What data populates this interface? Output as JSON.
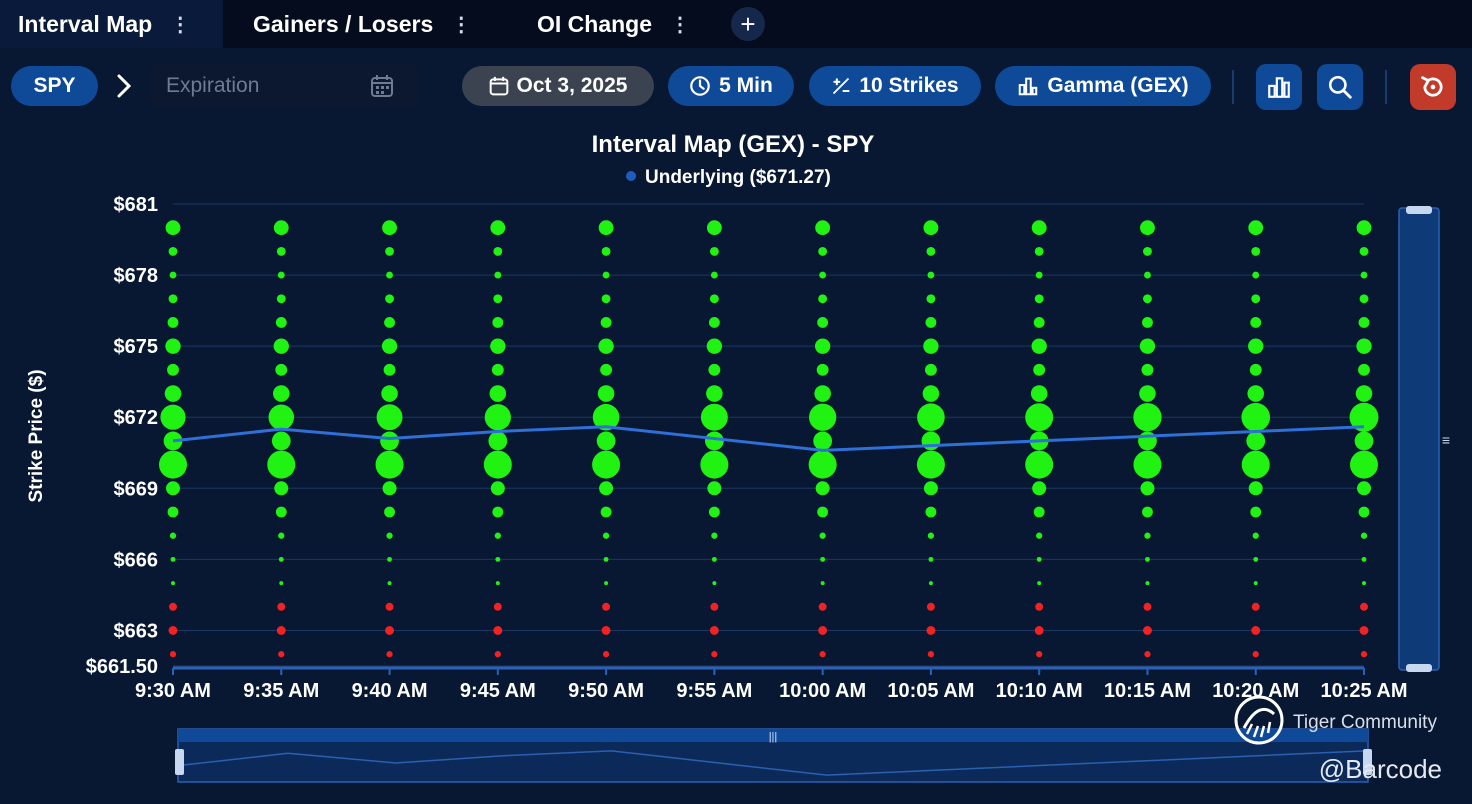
{
  "tabs": [
    {
      "label": "Interval Map"
    },
    {
      "label": "Gainers / Losers"
    },
    {
      "label": "OI Change"
    }
  ],
  "toolbar": {
    "ticker": "SPY",
    "expiration_placeholder": "Expiration",
    "date": "Oct 3, 2025",
    "interval": "5 Min",
    "strikes": "10 Strikes",
    "metric": "Gamma (GEX)"
  },
  "colors": {
    "accent": "#0f4a99",
    "positive": "#22ff11",
    "negative": "#ff2222",
    "underlying": "#2e6fd8",
    "reset": "#c23a2a"
  },
  "chart_data": {
    "type": "scatter",
    "title": "Interval Map (GEX) - SPY",
    "legend": "Underlying ($671.27)",
    "ylabel": "Strike Price ($)",
    "ylim": [
      661.5,
      681
    ],
    "yticks": [
      "$681",
      "$678",
      "$675",
      "$672",
      "$669",
      "$666",
      "$663",
      "$661.50"
    ],
    "ytick_values": [
      681,
      678,
      675,
      672,
      669,
      666,
      663,
      661.5
    ],
    "categories": [
      "9:30 AM",
      "9:35 AM",
      "9:40 AM",
      "9:45 AM",
      "9:50 AM",
      "9:55 AM",
      "10:00 AM",
      "10:05 AM",
      "10:10 AM",
      "10:15 AM",
      "10:20 AM",
      "10:25 AM"
    ],
    "strikes": [
      662,
      663,
      664,
      665,
      666,
      667,
      668,
      669,
      670,
      671,
      672,
      673,
      674,
      675,
      676,
      677,
      678,
      679,
      680
    ],
    "underlying": [
      671.0,
      671.5,
      671.1,
      671.4,
      671.6,
      671.1,
      670.6,
      670.8,
      671.0,
      671.2,
      671.4,
      671.6
    ],
    "gex_size_by_strike": {
      "662": -0.05,
      "663": -0.1,
      "664": -0.08,
      "665": 0.02,
      "666": 0.03,
      "667": 0.05,
      "668": 0.15,
      "669": 0.25,
      "670": 1.0,
      "671": 0.45,
      "672": 0.95,
      "673": 0.35,
      "674": 0.18,
      "675": 0.3,
      "676": 0.15,
      "677": 0.1,
      "678": 0.06,
      "679": 0.1,
      "680": 0.28
    },
    "grid": true
  },
  "watermarks": {
    "community": "Tiger Community",
    "handle": "@Barcode"
  }
}
